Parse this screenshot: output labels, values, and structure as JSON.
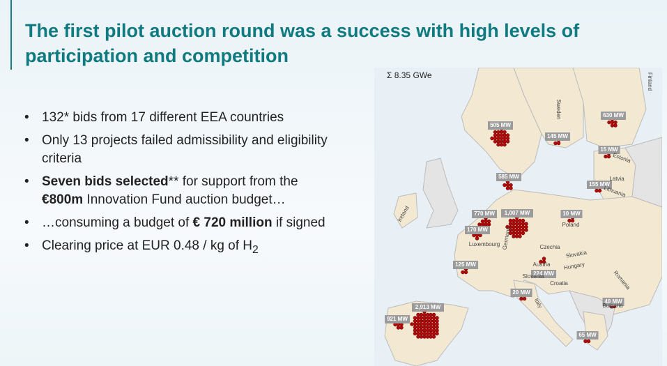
{
  "header": {
    "title": "The first pilot auction round was a success with high levels of participation and competition"
  },
  "bullets": [
    [
      {
        "text": "132* bids from 17 different EEA countries",
        "bold": false
      }
    ],
    [
      {
        "text": "Only 13 projects failed admissibility and eligibility criteria",
        "bold": false
      }
    ],
    [
      {
        "text": "Seven bids selected",
        "bold": true
      },
      {
        "text": "** for support from the ",
        "bold": false
      },
      {
        "text": "€800m",
        "bold": true
      },
      {
        "text": " Innovation Fund auction budget…",
        "bold": false
      }
    ],
    [
      {
        "text": "…consuming a budget of ",
        "bold": false
      },
      {
        "text": "€ 720 million",
        "bold": true
      },
      {
        "text": " if signed",
        "bold": false
      }
    ],
    [
      {
        "text": "Clearing price at EUR 0.48 / kg of H",
        "bold": false
      },
      {
        "text": "2",
        "bold": false,
        "sub": true
      }
    ]
  ],
  "map": {
    "total": "Σ 8.35 GWe",
    "capacities": [
      "505 MW",
      "145 MW",
      "630 MW",
      "15 MW",
      "585 MW",
      "155 MW",
      "770 MW",
      "1,007 MW",
      "10 MW",
      "170 MW",
      "125 MW",
      "224 MW",
      "20 MW",
      "40 MW",
      "2,913 MW",
      "921 MW",
      "65 MW"
    ],
    "countries": [
      "Finland",
      "Sweden",
      "Estonia",
      "Latvia",
      "Lithuania",
      "Ireland",
      "Poland",
      "Czechia",
      "Slovakia",
      "Hungary",
      "Romania",
      "Austria",
      "Slovenia",
      "Croatia",
      "Italy",
      "Bulgaria",
      "Germany",
      "Luxembourg"
    ]
  }
}
